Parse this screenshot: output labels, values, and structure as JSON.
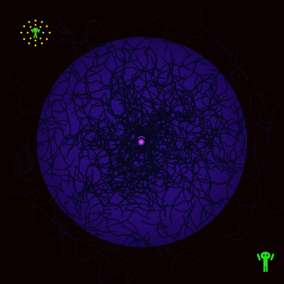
{
  "game": {
    "colors": {
      "background": "#0b0101",
      "maze_disc_fill": "#2b0a7a",
      "maze_walls": "#080a24",
      "center_target": "#b040e0",
      "hud_rays": "#f0e010",
      "avatar": "#22dd22"
    },
    "icons": {
      "hud_icon": "radiant-sun-figure-icon",
      "player": "green-alien-icon",
      "center_target": "pink-orb-icon",
      "maze": "circular-maze"
    }
  }
}
